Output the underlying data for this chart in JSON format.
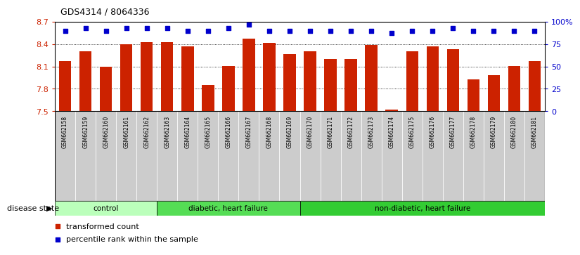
{
  "title": "GDS4314 / 8064336",
  "samples": [
    "GSM662158",
    "GSM662159",
    "GSM662160",
    "GSM662161",
    "GSM662162",
    "GSM662163",
    "GSM662164",
    "GSM662165",
    "GSM662166",
    "GSM662167",
    "GSM662168",
    "GSM662169",
    "GSM662170",
    "GSM662171",
    "GSM662172",
    "GSM662173",
    "GSM662174",
    "GSM662175",
    "GSM662176",
    "GSM662177",
    "GSM662178",
    "GSM662179",
    "GSM662180",
    "GSM662181"
  ],
  "bar_values": [
    8.17,
    8.3,
    8.1,
    8.4,
    8.43,
    8.43,
    8.37,
    7.85,
    8.11,
    8.47,
    8.42,
    8.27,
    8.3,
    8.2,
    8.2,
    8.39,
    7.52,
    8.3,
    8.37,
    8.33,
    7.93,
    7.98,
    8.11,
    8.17
  ],
  "blue_percentiles": [
    90,
    93,
    90,
    93,
    93,
    93,
    90,
    90,
    93,
    97,
    90,
    90,
    90,
    90,
    90,
    90,
    87,
    90,
    90,
    93,
    90,
    90,
    90,
    90
  ],
  "bar_color": "#cc2200",
  "blue_color": "#0000cc",
  "ylim_left": [
    7.5,
    8.7
  ],
  "ylim_right": [
    0,
    100
  ],
  "yticks_left": [
    7.5,
    7.8,
    8.1,
    8.4,
    8.7
  ],
  "yticks_right": [
    0,
    25,
    50,
    75,
    100
  ],
  "ytick_labels_right": [
    "0",
    "25",
    "50",
    "75",
    "100%"
  ],
  "groups": [
    {
      "label": "control",
      "start": 0,
      "end": 4,
      "color": "#bbffbb"
    },
    {
      "label": "diabetic, heart failure",
      "start": 5,
      "end": 11,
      "color": "#55dd55"
    },
    {
      "label": "non-diabetic, heart failure",
      "start": 12,
      "end": 23,
      "color": "#33cc33"
    }
  ],
  "disease_state_label": "disease state",
  "legend_items": [
    {
      "label": "transformed count",
      "color": "#cc2200"
    },
    {
      "label": "percentile rank within the sample",
      "color": "#0000cc"
    }
  ],
  "bg_color": "#ffffff",
  "bar_width": 0.6,
  "xtick_bg": "#cccccc"
}
